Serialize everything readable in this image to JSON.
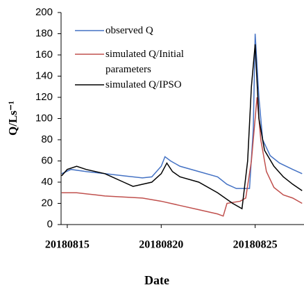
{
  "chart_data": {
    "type": "line",
    "x_label": "Date",
    "y_label": "Q/Ls⁻¹",
    "xlim": [
      14.67,
      27.6
    ],
    "xticks": [
      {
        "value": 15,
        "label": "20180815"
      },
      {
        "value": 20,
        "label": "20180820"
      },
      {
        "value": 25,
        "label": "20180825"
      }
    ],
    "ylim": [
      0,
      200
    ],
    "yticks": [
      0,
      20,
      40,
      60,
      80,
      100,
      120,
      140,
      160,
      180,
      200
    ],
    "grid": false,
    "legend": "upper left",
    "series": [
      {
        "name": "observed Q",
        "color": "#4472c4",
        "x": [
          14.7,
          15.2,
          16,
          17,
          18,
          19,
          19.5,
          20,
          20.2,
          20.5,
          21,
          22,
          23,
          23.5,
          24,
          24.7,
          24.9,
          25.0,
          25.2,
          25.4,
          25.8,
          26.3,
          27,
          27.5
        ],
        "values": [
          48,
          52,
          50,
          48,
          46,
          44,
          45,
          55,
          64,
          60,
          55,
          50,
          45,
          38,
          34,
          34,
          90,
          180,
          120,
          80,
          65,
          58,
          52,
          48
        ]
      },
      {
        "name": "simulated Q/Initial parameters",
        "color": "#c0504d",
        "x": [
          14.7,
          15.5,
          16.5,
          17,
          18,
          19,
          20,
          21,
          22,
          23,
          23.3,
          23.5,
          24.2,
          24.5,
          24.8,
          25.1,
          25.3,
          25.6,
          26,
          26.5,
          27,
          27.5
        ],
        "values": [
          30,
          30,
          28,
          27,
          26,
          25,
          22,
          18,
          14,
          10,
          8,
          20,
          22,
          25,
          60,
          120,
          80,
          50,
          35,
          28,
          25,
          20
        ]
      },
      {
        "name": "simulated Q/IPSO",
        "color": "#000000",
        "x": [
          14.7,
          15,
          15.5,
          16,
          17,
          18,
          18.5,
          19.5,
          20,
          20.3,
          20.6,
          21,
          22,
          23,
          23.8,
          24.3,
          24.6,
          24.8,
          25.0,
          25.2,
          25.5,
          26,
          26.5,
          27,
          27.5
        ],
        "values": [
          46,
          52,
          55,
          52,
          48,
          40,
          36,
          40,
          48,
          58,
          50,
          45,
          40,
          30,
          20,
          15,
          60,
          130,
          170,
          100,
          70,
          55,
          45,
          38,
          32
        ]
      }
    ]
  }
}
